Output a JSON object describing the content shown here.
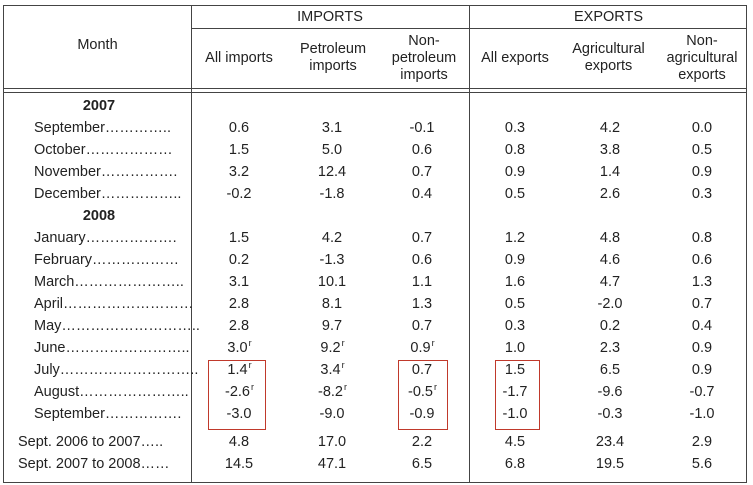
{
  "header": {
    "month": "Month",
    "imports_group": "IMPORTS",
    "exports_group": "EXPORTS",
    "columns": [
      [
        "All imports"
      ],
      [
        "Petroleum",
        "imports"
      ],
      [
        "Non-",
        "petroleum",
        "imports"
      ],
      [
        "All exports"
      ],
      [
        "Agricultural",
        "exports"
      ],
      [
        "Non-",
        "agricultural",
        "exports"
      ]
    ]
  },
  "rows": [
    {
      "type": "year",
      "label": "2007"
    },
    {
      "label": "September…………..",
      "values": [
        "0.6",
        "3.1",
        "-0.1",
        "0.3",
        "4.2",
        "0.0"
      ]
    },
    {
      "label": "October………………",
      "values": [
        "1.5",
        "5.0",
        "0.6",
        "0.8",
        "3.8",
        "0.5"
      ]
    },
    {
      "label": "November…………….",
      "values": [
        "3.2",
        "12.4",
        "0.7",
        "0.9",
        "1.4",
        "0.9"
      ]
    },
    {
      "label": "December……………..",
      "values": [
        "-0.2",
        "-1.8",
        "0.4",
        "0.5",
        "2.6",
        "0.3"
      ]
    },
    {
      "type": "year",
      "label": "2008"
    },
    {
      "label": "January……………….",
      "values": [
        "1.5",
        "4.2",
        "0.7",
        "1.2",
        "4.8",
        "0.8"
      ]
    },
    {
      "label": "February………………",
      "values": [
        "0.2",
        "-1.3",
        "0.6",
        "0.9",
        "4.6",
        "0.6"
      ]
    },
    {
      "label": "March…………………..",
      "values": [
        "3.1",
        "10.1",
        "1.1",
        "1.6",
        "4.7",
        "1.3"
      ]
    },
    {
      "label": "April………………………",
      "values": [
        "2.8",
        "8.1",
        "1.3",
        "0.5",
        "-2.0",
        "0.7"
      ]
    },
    {
      "label": "May………………………..",
      "values": [
        "2.8",
        "9.7",
        "0.7",
        "0.3",
        "0.2",
        "0.4"
      ]
    },
    {
      "label": "June……………………..",
      "values": [
        "3.0",
        "9.2",
        "0.9",
        "1.0",
        "2.3",
        "0.9"
      ],
      "rev": [
        true,
        true,
        true,
        false,
        false,
        false
      ]
    },
    {
      "label": "July………………………..",
      "values": [
        "1.4",
        "3.4",
        "0.7",
        "1.5",
        "6.5",
        "0.9"
      ],
      "rev": [
        true,
        true,
        false,
        false,
        false,
        false
      ]
    },
    {
      "label": "August…………………..",
      "values": [
        "-2.6",
        "-8.2",
        "-0.5",
        "-1.7",
        "-9.6",
        "-0.7"
      ],
      "rev": [
        true,
        true,
        true,
        false,
        false,
        false
      ]
    },
    {
      "label": "September…………….",
      "values": [
        "-3.0",
        "-9.0",
        "-0.9",
        "-1.0",
        "-0.3",
        "-1.0"
      ]
    },
    {
      "type": "gap"
    },
    {
      "label": "Sept. 2006 to 2007…..",
      "values": [
        "4.8",
        "17.0",
        "2.2",
        "4.5",
        "23.4",
        "2.9"
      ]
    },
    {
      "label": "Sept. 2007 to 2008……",
      "values": [
        "14.5",
        "47.1",
        "6.5",
        "6.8",
        "19.5",
        "5.6"
      ]
    }
  ],
  "revision_mark": "r"
}
